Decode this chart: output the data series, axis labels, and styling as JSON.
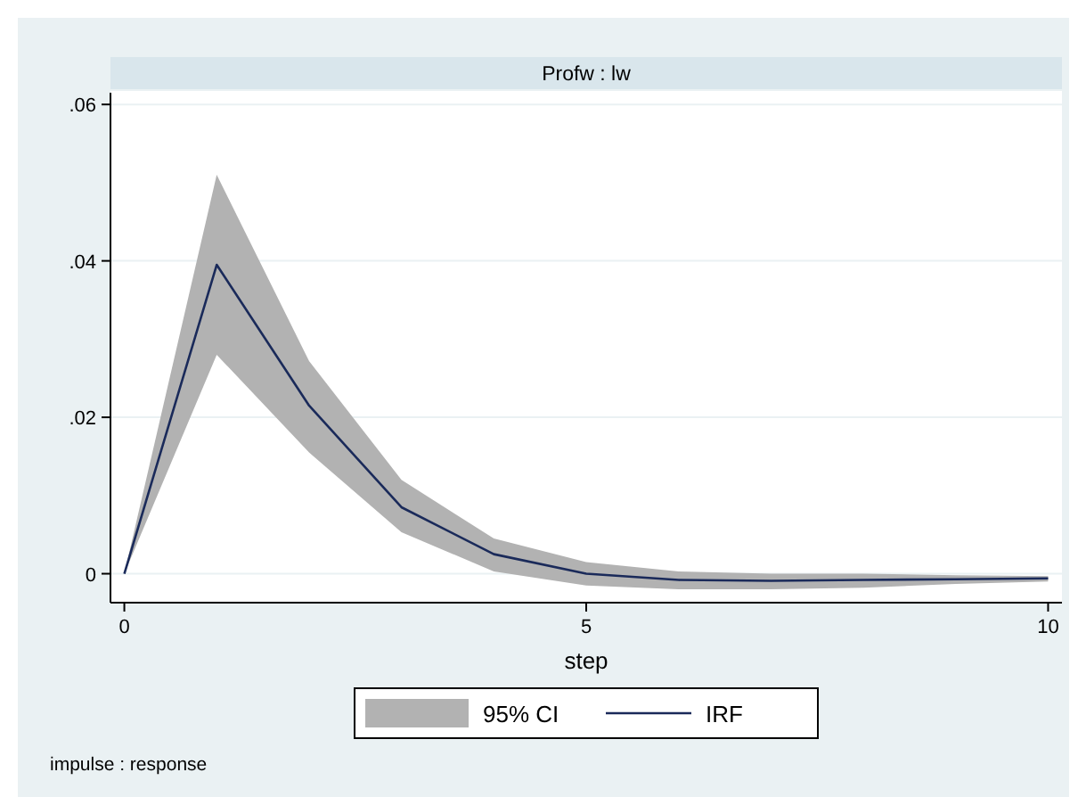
{
  "chart_data": {
    "type": "line",
    "subtitle": "Profw : lw",
    "xlabel": "step",
    "x": [
      0,
      1,
      2,
      3,
      4,
      5,
      6,
      7,
      8,
      9,
      10
    ],
    "series": [
      {
        "name": "IRF",
        "type": "line",
        "color": "#1a2a5a",
        "values": [
          0,
          0.0395,
          0.0215,
          0.0085,
          0.0025,
          0,
          -0.0008,
          -0.0009,
          -0.0008,
          -0.0007,
          -0.0006
        ],
        "lower": [
          0,
          0.028,
          0.0155,
          0.0053,
          0.0003,
          -0.0015,
          -0.002,
          -0.002,
          -0.0018,
          -0.0013,
          -0.001
        ],
        "upper": [
          0,
          0.051,
          0.0272,
          0.012,
          0.0045,
          0.0015,
          0.0003,
          0,
          0,
          -0.0002,
          -0.0003
        ]
      }
    ],
    "xlim": [
      -0.15,
      10.15
    ],
    "xticks": [
      0,
      5,
      10
    ],
    "ylim": [
      -0.0037,
      0.0615
    ],
    "yticks": [
      0,
      {
        "value": 0.02,
        "label": ".02"
      },
      {
        "value": 0.04,
        "label": ".04"
      },
      {
        "value": 0.06,
        "label": ".06"
      }
    ],
    "grid": "y",
    "legend": "bottom",
    "annotations": [
      "95% CI",
      "impulse : response"
    ]
  }
}
